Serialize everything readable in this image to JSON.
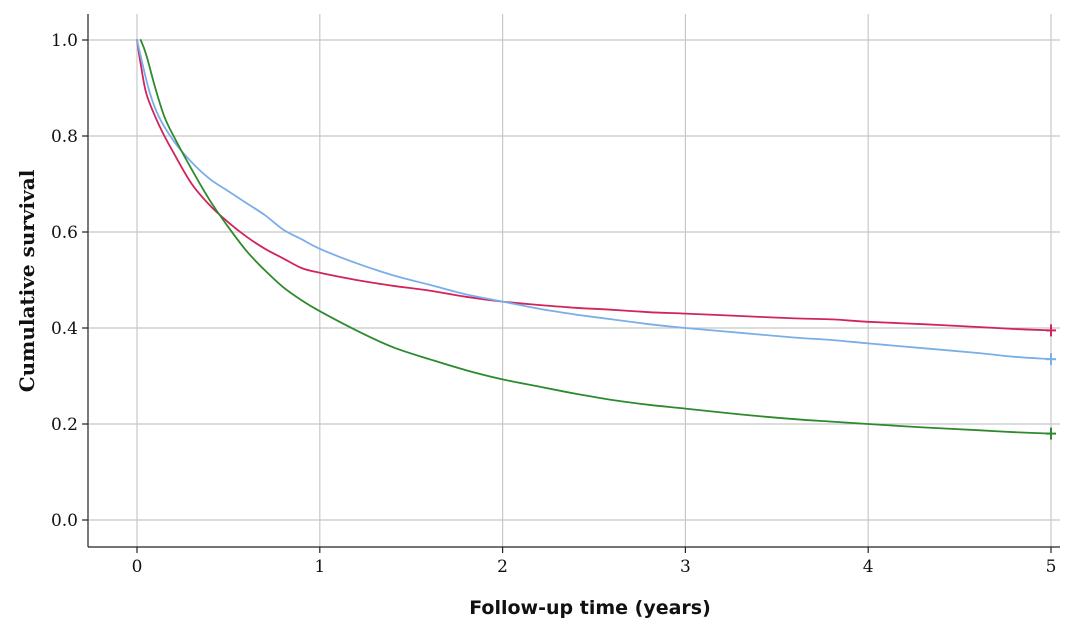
{
  "chart_data": {
    "type": "line",
    "title": "",
    "xlabel": "Follow-up time (years)",
    "ylabel": "Cumulative survival",
    "xlim": [
      0,
      5
    ],
    "ylim": [
      0,
      1.0
    ],
    "x_ticks": [
      {
        "value": 0,
        "label": "0"
      },
      {
        "value": 1,
        "label": "1"
      },
      {
        "value": 2,
        "label": "2"
      },
      {
        "value": 3,
        "label": "3"
      },
      {
        "value": 4,
        "label": "4"
      },
      {
        "value": 5,
        "label": "5"
      }
    ],
    "y_ticks": [
      {
        "value": 0.0,
        "label": "0.0"
      },
      {
        "value": 0.2,
        "label": "0.2"
      },
      {
        "value": 0.4,
        "label": "0.4"
      },
      {
        "value": 0.6,
        "label": "0.6"
      },
      {
        "value": 0.8,
        "label": "0.8"
      },
      {
        "value": 1.0,
        "label": "1.0"
      }
    ],
    "grid": true,
    "legend": "none",
    "series": [
      {
        "color": "#d0245a",
        "censored_at_end": true,
        "points": [
          [
            0,
            1.0
          ],
          [
            0.02,
            0.95
          ],
          [
            0.05,
            0.89
          ],
          [
            0.1,
            0.84
          ],
          [
            0.15,
            0.8
          ],
          [
            0.2,
            0.765
          ],
          [
            0.3,
            0.7
          ],
          [
            0.4,
            0.655
          ],
          [
            0.5,
            0.62
          ],
          [
            0.6,
            0.59
          ],
          [
            0.7,
            0.565
          ],
          [
            0.8,
            0.545
          ],
          [
            0.9,
            0.525
          ],
          [
            1.0,
            0.515
          ],
          [
            1.2,
            0.5
          ],
          [
            1.4,
            0.488
          ],
          [
            1.6,
            0.478
          ],
          [
            1.8,
            0.465
          ],
          [
            2.0,
            0.455
          ],
          [
            2.2,
            0.448
          ],
          [
            2.4,
            0.442
          ],
          [
            2.6,
            0.438
          ],
          [
            2.8,
            0.433
          ],
          [
            3.0,
            0.43
          ],
          [
            3.3,
            0.425
          ],
          [
            3.6,
            0.42
          ],
          [
            3.8,
            0.418
          ],
          [
            4.0,
            0.413
          ],
          [
            4.3,
            0.408
          ],
          [
            4.6,
            0.402
          ],
          [
            4.8,
            0.398
          ],
          [
            5.0,
            0.395
          ]
        ]
      },
      {
        "color": "#7aaee8",
        "censored_at_end": true,
        "points": [
          [
            0,
            1.0
          ],
          [
            0.03,
            0.95
          ],
          [
            0.07,
            0.89
          ],
          [
            0.12,
            0.84
          ],
          [
            0.2,
            0.79
          ],
          [
            0.3,
            0.745
          ],
          [
            0.4,
            0.71
          ],
          [
            0.5,
            0.685
          ],
          [
            0.6,
            0.66
          ],
          [
            0.7,
            0.635
          ],
          [
            0.8,
            0.605
          ],
          [
            0.9,
            0.585
          ],
          [
            1.0,
            0.565
          ],
          [
            1.2,
            0.535
          ],
          [
            1.4,
            0.51
          ],
          [
            1.6,
            0.49
          ],
          [
            1.8,
            0.47
          ],
          [
            2.0,
            0.455
          ],
          [
            2.2,
            0.44
          ],
          [
            2.4,
            0.428
          ],
          [
            2.6,
            0.418
          ],
          [
            2.8,
            0.408
          ],
          [
            3.0,
            0.4
          ],
          [
            3.3,
            0.39
          ],
          [
            3.6,
            0.38
          ],
          [
            3.8,
            0.375
          ],
          [
            4.0,
            0.368
          ],
          [
            4.3,
            0.358
          ],
          [
            4.6,
            0.348
          ],
          [
            4.8,
            0.34
          ],
          [
            5.0,
            0.335
          ]
        ]
      },
      {
        "color": "#2e8a2e",
        "censored_at_end": true,
        "points": [
          [
            0.02,
            1.0
          ],
          [
            0.05,
            0.97
          ],
          [
            0.1,
            0.9
          ],
          [
            0.15,
            0.84
          ],
          [
            0.2,
            0.8
          ],
          [
            0.3,
            0.73
          ],
          [
            0.4,
            0.665
          ],
          [
            0.5,
            0.61
          ],
          [
            0.6,
            0.56
          ],
          [
            0.7,
            0.52
          ],
          [
            0.8,
            0.485
          ],
          [
            0.9,
            0.458
          ],
          [
            1.0,
            0.435
          ],
          [
            1.2,
            0.395
          ],
          [
            1.4,
            0.36
          ],
          [
            1.6,
            0.335
          ],
          [
            1.8,
            0.312
          ],
          [
            2.0,
            0.293
          ],
          [
            2.2,
            0.278
          ],
          [
            2.4,
            0.263
          ],
          [
            2.6,
            0.25
          ],
          [
            2.8,
            0.24
          ],
          [
            3.0,
            0.232
          ],
          [
            3.3,
            0.22
          ],
          [
            3.6,
            0.21
          ],
          [
            3.8,
            0.205
          ],
          [
            4.0,
            0.2
          ],
          [
            4.3,
            0.193
          ],
          [
            4.6,
            0.187
          ],
          [
            4.8,
            0.183
          ],
          [
            5.0,
            0.18
          ]
        ]
      }
    ]
  }
}
